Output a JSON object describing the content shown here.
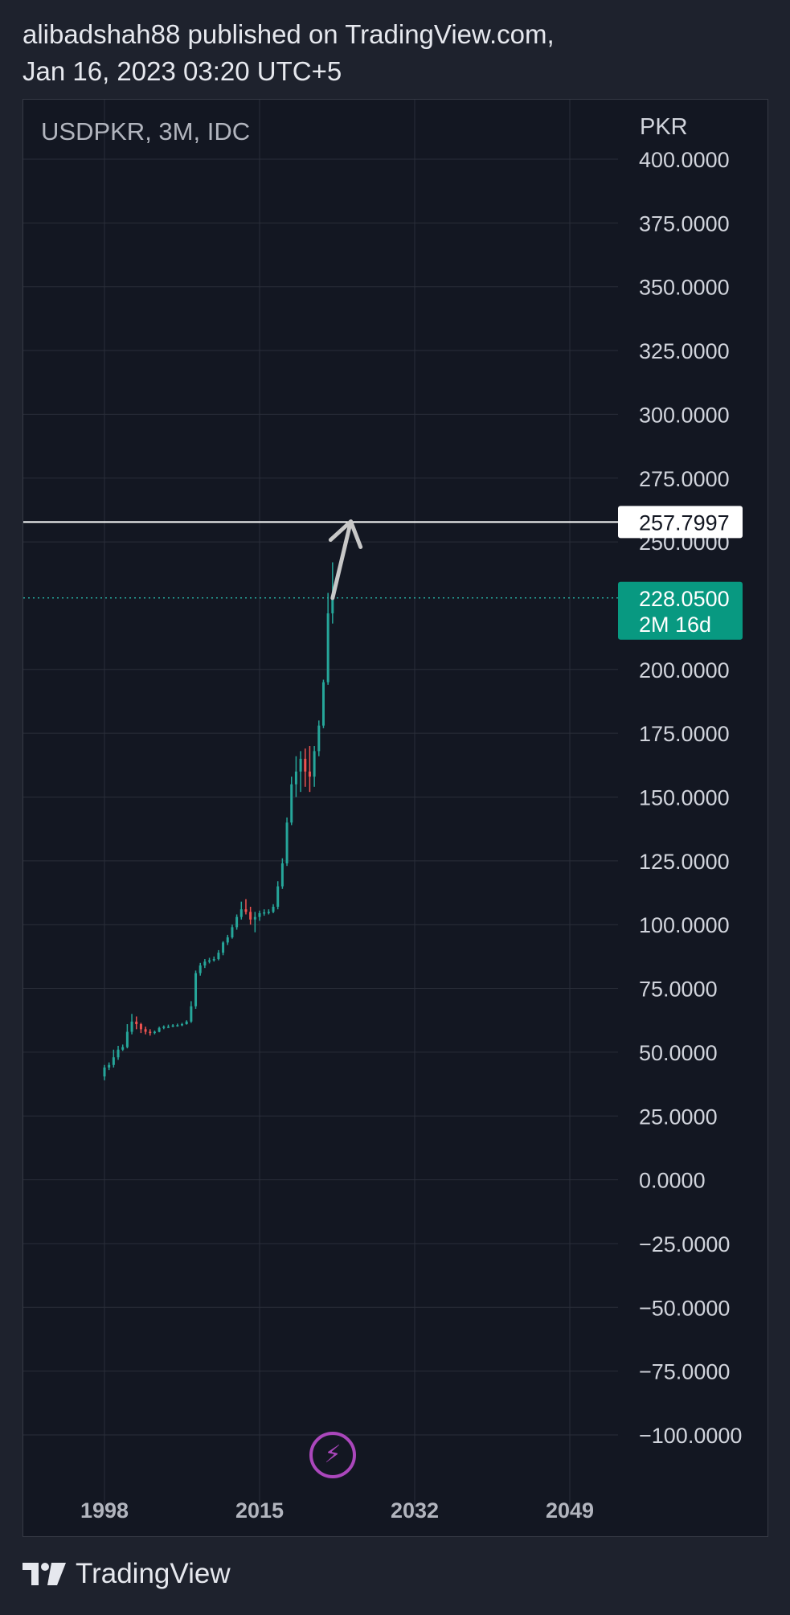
{
  "header": {
    "line1": "alibadshah88 published on TradingView.com,",
    "line2": "Jan 16, 2023 03:20 UTC+5"
  },
  "chart_header": {
    "symbol": "USDPKR, 3M, IDC",
    "currency": "PKR"
  },
  "footer": {
    "brand": "TradingView"
  },
  "icons": {
    "brand_logo": "tradingview-logo-icon",
    "bolt": "lightning-bolt-icon"
  },
  "colors": {
    "background": "#131722",
    "page": "#1e222d",
    "grid": "#2a2e39",
    "up": "#26a69a",
    "down": "#ef5350",
    "label_bg": "#089981",
    "level_line": "#ffffff",
    "arrow": "#c8c8c8",
    "bolt": "#ab47bc"
  },
  "chart_data": {
    "type": "candlestick",
    "title": "USDPKR, 3M, IDC",
    "ylabel": "PKR",
    "ylim": [
      -112,
      405
    ],
    "xlim": [
      1998,
      2049
    ],
    "x_ticks": [
      1998,
      2015,
      2032,
      2049
    ],
    "x_tick_labels": [
      "1998",
      "2015",
      "2032",
      "2049"
    ],
    "y_ticks": [
      400,
      375,
      350,
      325,
      300,
      275,
      250,
      200,
      175,
      150,
      125,
      100,
      75,
      50,
      25,
      0,
      -25,
      -50,
      -75,
      -100
    ],
    "y_tick_labels": [
      "400.0000",
      "375.0000",
      "350.0000",
      "325.0000",
      "300.0000",
      "275.0000",
      "250.0000",
      "200.0000",
      "175.0000",
      "150.0000",
      "125.0000",
      "100.0000",
      "75.0000",
      "50.0000",
      "25.0000",
      "0.0000",
      "−25.0000",
      "−50.0000",
      "−75.0000",
      "−100.0000"
    ],
    "grid": true,
    "series": [
      {
        "x": [
          1998.0,
          1998.5,
          1999.0,
          1999.5,
          2000.0,
          2000.5,
          2001.0,
          2001.5,
          2002.0,
          2002.5,
          2003.0,
          2003.5,
          2004.0,
          2004.5,
          2005.0,
          2005.5,
          2006.0,
          2006.5,
          2007.0,
          2007.5,
          2008.0,
          2008.5,
          2009.0,
          2009.5,
          2010.0,
          2010.5,
          2011.0,
          2011.5,
          2012.0,
          2012.5,
          2013.0,
          2013.5,
          2014.0,
          2014.5,
          2015.0,
          2015.5,
          2016.0,
          2016.5,
          2017.0,
          2017.5,
          2018.0,
          2018.5,
          2019.0,
          2019.5,
          2020.0,
          2020.5,
          2021.0,
          2021.5,
          2022.0,
          2022.5,
          2023.0
        ],
        "open": [
          40.5,
          44,
          45,
          48,
          51,
          52,
          58,
          62,
          61,
          59,
          58,
          57.5,
          58,
          59.5,
          60,
          60,
          60.5,
          60.6,
          61,
          62,
          68,
          81,
          84,
          85.5,
          86,
          86.5,
          89,
          93,
          95,
          99,
          103,
          106,
          105,
          102,
          103,
          104.5,
          104.8,
          105,
          107,
          115,
          124,
          140,
          155,
          160,
          165,
          160,
          158,
          168,
          178,
          195,
          222
        ],
        "high": [
          45,
          46,
          51,
          52.5,
          53,
          61,
          65,
          64,
          61.5,
          60,
          59,
          58.5,
          60,
          60.5,
          60.8,
          61,
          61.2,
          61.5,
          62.5,
          70,
          82,
          85,
          86.5,
          87,
          87.5,
          90,
          93.5,
          96,
          100,
          104,
          109,
          110,
          107,
          105,
          105.5,
          106,
          106,
          108,
          117,
          126,
          142,
          158,
          166,
          168,
          169,
          170,
          170,
          180,
          196,
          230,
          242
        ],
        "low": [
          39,
          43,
          44,
          47,
          50.5,
          51.5,
          57,
          59,
          57.5,
          57,
          56.5,
          57,
          57.8,
          59,
          59.5,
          59.8,
          60,
          60.2,
          60.8,
          61.5,
          67,
          80,
          83,
          84.8,
          85.5,
          86,
          88,
          92,
          94.5,
          98,
          102,
          104,
          100,
          97,
          101.5,
          103.5,
          104,
          104.5,
          106,
          114,
          123,
          139,
          150,
          152,
          154,
          152,
          154,
          166,
          177,
          194,
          218
        ],
        "close": [
          44,
          45,
          48,
          51,
          52,
          58,
          62,
          61,
          59,
          58,
          57.5,
          58,
          59.5,
          60,
          60,
          60.5,
          60.6,
          61,
          62,
          68,
          81,
          84,
          85.5,
          86,
          86.5,
          89,
          93,
          95,
          99,
          103,
          106,
          105,
          102,
          103,
          104.5,
          104.8,
          105,
          107,
          115,
          124,
          140,
          155,
          160,
          165,
          160,
          158,
          168,
          178,
          195,
          222,
          228.05
        ]
      }
    ],
    "last_price": 228.05,
    "last_price_label": "228.0500",
    "countdown_label": "2M 16d",
    "horizontal_level": 257.7997,
    "horizontal_level_label": "257.7997",
    "projection_arrow": {
      "from": [
        2023.0,
        228
      ],
      "to": [
        2025.0,
        258
      ]
    }
  }
}
